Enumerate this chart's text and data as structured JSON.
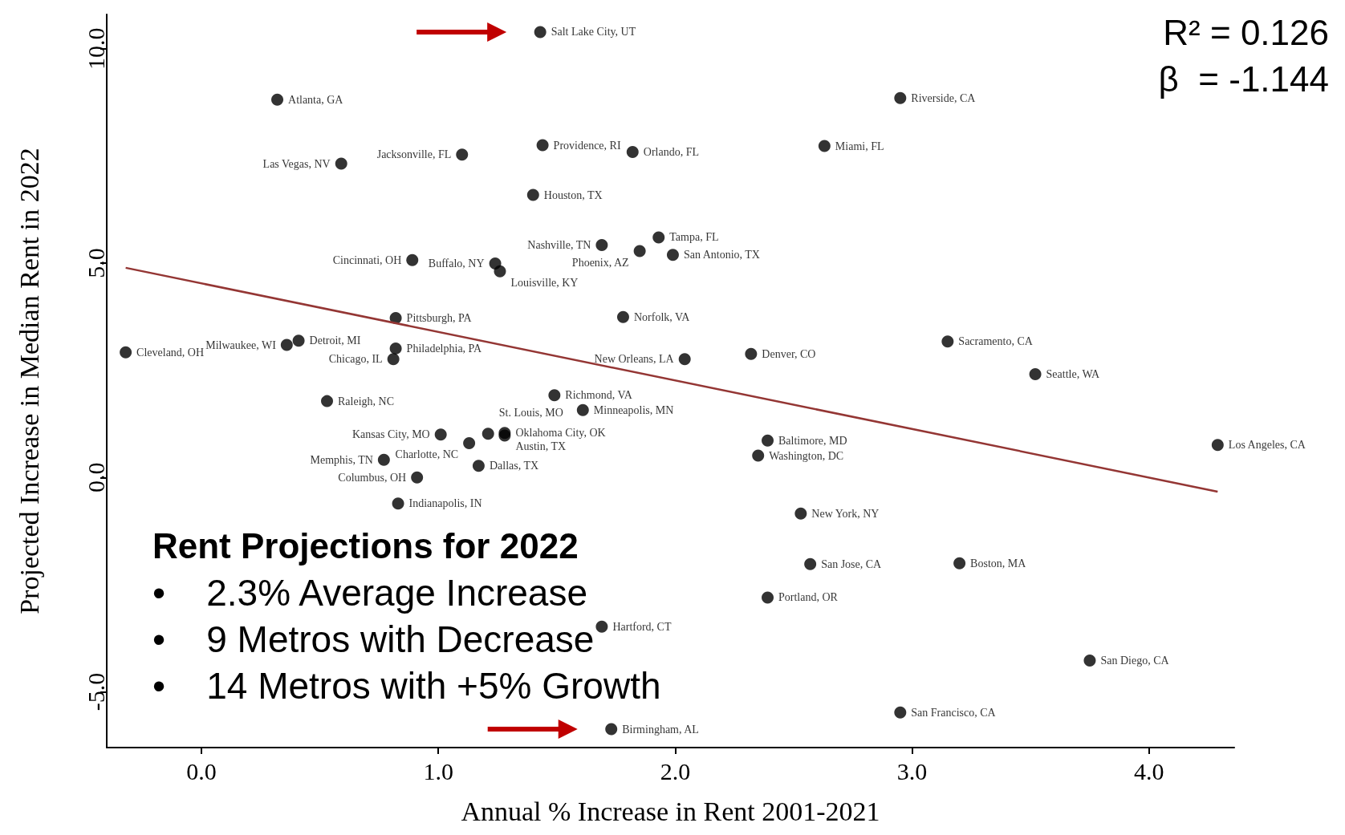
{
  "chart_data": {
    "type": "scatter",
    "xlabel": "Annual % Increase in Rent 2001-2021",
    "ylabel": "Projected Increase in Median Rent in 2022",
    "xlim": [
      -0.4,
      4.36
    ],
    "ylim": [
      -6.3,
      10.8
    ],
    "xticks": [
      {
        "value": 0,
        "label": "0.0"
      },
      {
        "value": 1,
        "label": "1.0"
      },
      {
        "value": 2,
        "label": "2.0"
      },
      {
        "value": 3,
        "label": "3.0"
      },
      {
        "value": 4,
        "label": "4.0"
      }
    ],
    "yticks": [
      {
        "value": -5,
        "label": "-5.0"
      },
      {
        "value": 0,
        "label": "0.0"
      },
      {
        "value": 5,
        "label": "5.0"
      },
      {
        "value": 10,
        "label": "10.0"
      }
    ],
    "grid": false,
    "marker": "circle",
    "annotations": [
      "R² = 0.126",
      "β  = -1.144",
      "Rent Projections for 2022",
      "•    2.3% Average Increase",
      "•    9 Metros with Decrease",
      "•    14 Metros with +5% Growth"
    ],
    "series": [
      {
        "color": "#000000",
        "x": [
          1.43,
          0.32,
          2.95,
          1.44,
          1.1,
          1.82,
          2.63,
          0.59,
          1.4,
          1.93,
          1.69,
          1.85,
          1.99,
          0.89,
          1.24,
          1.26,
          0.82,
          1.78,
          3.15,
          0.41,
          0.36,
          -0.32,
          0.82,
          0.81,
          2.32,
          2.04,
          3.52,
          0.53,
          1.49,
          1.61,
          1.01,
          1.21,
          1.28,
          1.28,
          1.13,
          2.39,
          4.29,
          2.35,
          0.77,
          1.17,
          0.91,
          0.83,
          2.53,
          2.57,
          3.2,
          2.39,
          1.69,
          3.75,
          2.95,
          1.73
        ],
        "values": [
          10.39,
          8.81,
          8.85,
          7.75,
          7.53,
          7.59,
          7.73,
          7.32,
          6.59,
          5.6,
          5.42,
          5.28,
          5.19,
          5.07,
          4.99,
          4.81,
          3.72,
          3.74,
          3.17,
          3.19,
          3.09,
          2.92,
          3.01,
          2.76,
          2.88,
          2.76,
          2.41,
          1.78,
          1.92,
          1.57,
          1.0,
          1.02,
          1.04,
          0.98,
          0.8,
          0.86,
          0.76,
          0.51,
          0.41,
          0.27,
          0.0,
          -0.61,
          -0.84,
          -2.02,
          -2.0,
          -2.8,
          -3.48,
          -4.27,
          -5.48,
          -5.87
        ],
        "value_labels": [
          "Salt Lake City, UT",
          "Atlanta, GA",
          "Riverside, CA",
          "Providence, RI",
          "Jacksonville, FL",
          "Orlando, FL",
          "Miami, FL",
          "Las Vegas, NV",
          "Houston, TX",
          "Tampa, FL",
          "Nashville, TN",
          "Phoenix, AZ",
          "San Antonio, TX",
          "Cincinnati, OH",
          "Buffalo, NY",
          "Louisville, KY",
          "Pittsburgh, PA",
          "Norfolk, VA",
          "Sacramento, CA",
          "Detroit, MI",
          "Milwaukee, WI",
          "Cleveland, OH",
          "Philadelphia, PA",
          "Chicago, IL",
          "Denver, CO",
          "New Orleans, LA",
          "Seattle, WA",
          "Raleigh, NC",
          "Richmond, VA",
          "Minneapolis, MN",
          "Kansas City, MO",
          "St. Louis, MO",
          "Oklahoma City, OK",
          "Austin, TX",
          "Charlotte, NC",
          "Baltimore, MD",
          "Los Angeles, CA",
          "Washington, DC",
          "Memphis, TN",
          "Dallas, TX",
          "Columbus, OH",
          "Indianapolis, IN",
          "New York, NY",
          "San Jose, CA",
          "Boston, MA",
          "Portland, OR",
          "Hartford, CT",
          "San Diego, CA",
          "San Francisco, CA",
          "Birmingham, AL"
        ]
      },
      {
        "type": "line",
        "color": "#943634",
        "marker": "none",
        "x": [
          -0.32,
          4.29
        ],
        "values": [
          4.89,
          -0.33
        ]
      }
    ]
  }
}
